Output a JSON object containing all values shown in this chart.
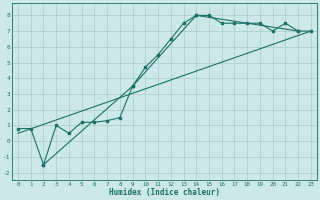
{
  "background_color": "#cde8e8",
  "grid_color": "#a8cccc",
  "line_color": "#1a7068",
  "xlabel": "Humidex (Indice chaleur)",
  "xlim": [
    -0.5,
    23.5
  ],
  "ylim": [
    -2.5,
    8.8
  ],
  "yticks": [
    -2,
    -1,
    0,
    1,
    2,
    3,
    4,
    5,
    6,
    7,
    8
  ],
  "xticks": [
    0,
    1,
    2,
    3,
    4,
    5,
    6,
    7,
    8,
    9,
    10,
    11,
    12,
    13,
    14,
    15,
    16,
    17,
    18,
    19,
    20,
    21,
    22,
    23
  ],
  "line1_x": [
    0,
    1,
    2,
    3,
    4,
    5,
    6,
    7,
    8,
    9,
    10,
    11,
    12,
    13,
    14,
    15,
    16,
    17,
    18,
    19,
    20,
    21,
    22
  ],
  "line1_y": [
    0.8,
    0.8,
    -1.5,
    1.0,
    0.5,
    1.2,
    1.2,
    1.3,
    1.5,
    3.5,
    4.7,
    5.5,
    6.5,
    7.5,
    8.0,
    8.0,
    7.5,
    7.5,
    7.5,
    7.5,
    7.0,
    7.5,
    7.0
  ],
  "line2_x": [
    0,
    23
  ],
  "line2_y": [
    0.5,
    7.0
  ],
  "line3_x": [
    2,
    9,
    14,
    22,
    23
  ],
  "line3_y": [
    -1.5,
    3.5,
    8.0,
    7.0,
    7.0
  ],
  "figsize": [
    3.2,
    2.0
  ],
  "dpi": 100
}
